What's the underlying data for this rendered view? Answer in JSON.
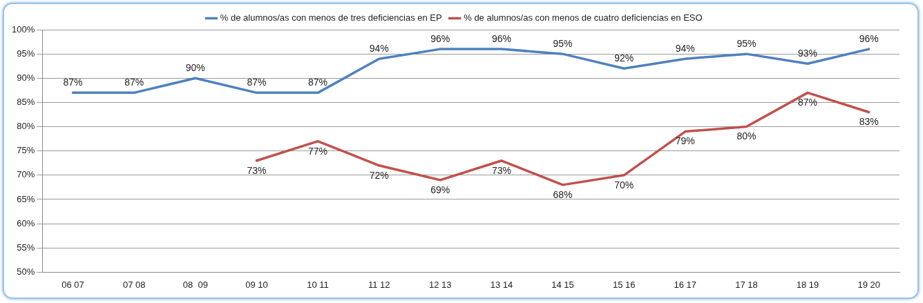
{
  "chart_data": {
    "type": "line",
    "categories": [
      "06 07",
      "07 08",
      "08  09",
      "09 10",
      "10 11",
      "11 12",
      "12 13",
      "13 14",
      "14 15",
      "15 16",
      "16 17",
      "17 18",
      "18 19",
      "19 20"
    ],
    "series": [
      {
        "name": "% de alumnos/as con menos de tres deficiencias en EP",
        "color": "#4f81bd",
        "values": [
          87,
          87,
          90,
          87,
          87,
          94,
          96,
          96,
          95,
          92,
          94,
          95,
          93,
          96
        ],
        "value_labels": [
          "87%",
          "87%",
          "90%",
          "87%",
          "87%",
          "94%",
          "96%",
          "96%",
          "95%",
          "92%",
          "94%",
          "95%",
          "93%",
          "96%"
        ]
      },
      {
        "name": "% de alumnos/as con menos de cuatro deficiencias en ESO",
        "color": "#c0504d",
        "values": [
          null,
          null,
          null,
          73,
          77,
          72,
          69,
          73,
          68,
          70,
          79,
          80,
          87,
          83
        ],
        "value_labels": [
          null,
          null,
          null,
          "73%",
          "77%",
          "72%",
          "69%",
          "73%",
          "68%",
          "70%",
          "79%",
          "80%",
          "87%",
          "83%"
        ]
      }
    ],
    "ylim": [
      50,
      100
    ],
    "yticks": [
      {
        "value": 50,
        "label": "50%"
      },
      {
        "value": 55,
        "label": "55%"
      },
      {
        "value": 60,
        "label": "60%"
      },
      {
        "value": 65,
        "label": "65%"
      },
      {
        "value": 70,
        "label": "70%"
      },
      {
        "value": 75,
        "label": "75%"
      },
      {
        "value": 80,
        "label": "80%"
      },
      {
        "value": 85,
        "label": "85%"
      },
      {
        "value": 90,
        "label": "90%"
      },
      {
        "value": 95,
        "label": "95%"
      },
      {
        "value": 100,
        "label": "100%"
      }
    ],
    "grid": "y",
    "legend": "top",
    "marker": "none",
    "line_style": "solid"
  }
}
